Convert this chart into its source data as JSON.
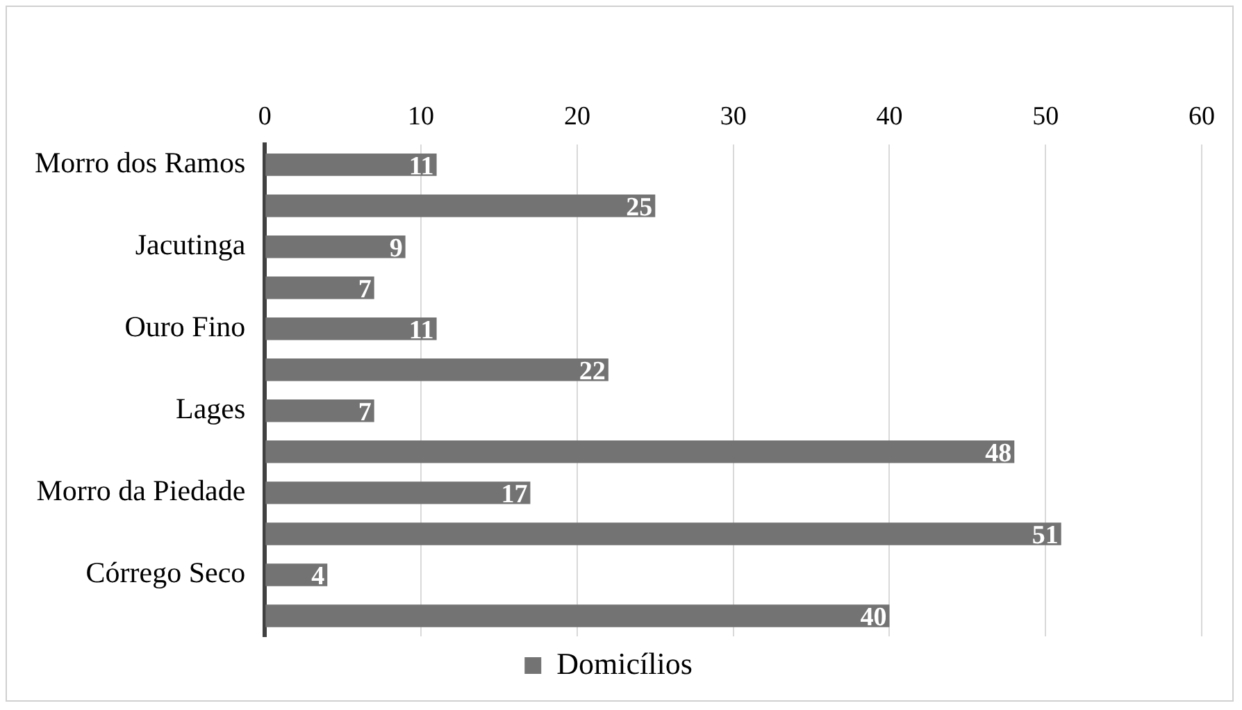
{
  "chart_data": {
    "type": "bar",
    "orientation": "horizontal",
    "categories": [
      "Morro dos Ramos",
      null,
      "Jacutinga",
      null,
      "Ouro Fino",
      null,
      "Lages",
      null,
      "Morro da Piedade",
      null,
      "Córrego Seco",
      null
    ],
    "series": [
      {
        "name": "Domicílios",
        "color": "#737373",
        "values": [
          11,
          25,
          9,
          7,
          11,
          22,
          7,
          48,
          17,
          51,
          4,
          40
        ]
      }
    ],
    "xlim": [
      0,
      60
    ],
    "xticks": [
      0,
      10,
      20,
      30,
      40,
      50,
      60
    ],
    "grid": "x",
    "legend": "bottom",
    "data_labels": true
  }
}
